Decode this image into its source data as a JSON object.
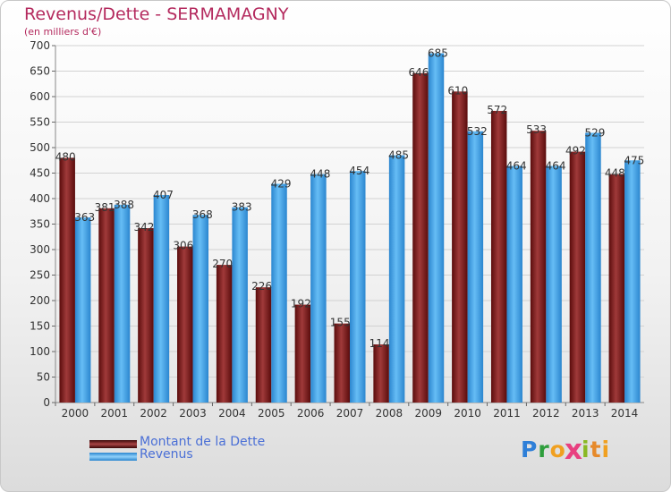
{
  "header": {
    "title": "Revenus/Dette - SERMAMAGNY",
    "subtitle": "(en milliers d'€)"
  },
  "logo": {
    "text": "Proxiti",
    "letters": [
      "P",
      "r",
      "o",
      "x",
      "i",
      "t",
      "i"
    ],
    "letter_colors": [
      "#2e7fd8",
      "#2e9e3c",
      "#f0a020",
      "#e84080",
      "#8ab823",
      "#e6892a",
      "#f0a020"
    ]
  },
  "chart_data": {
    "type": "bar",
    "title": "Revenus/Dette - SERMAMAGNY",
    "subtitle": "(en milliers d'€)",
    "categories": [
      "2000",
      "2001",
      "2002",
      "2003",
      "2004",
      "2005",
      "2006",
      "2007",
      "2008",
      "2009",
      "2010",
      "2011",
      "2012",
      "2013",
      "2014"
    ],
    "series": [
      {
        "name": "Montant de la Dette",
        "values": [
          480,
          381,
          342,
          306,
          270,
          226,
          192,
          155,
          114,
          646,
          610,
          572,
          533,
          492,
          448
        ],
        "color": "#7d1d1d"
      },
      {
        "name": "Revenus",
        "values": [
          363,
          388,
          407,
          368,
          383,
          429,
          448,
          454,
          485,
          685,
          532,
          464,
          464,
          529,
          475
        ],
        "color": "#3f9fe6"
      }
    ],
    "ylim": [
      0,
      700
    ],
    "yticks": [
      0,
      50,
      100,
      150,
      200,
      250,
      300,
      350,
      400,
      450,
      500,
      550,
      600,
      650,
      700
    ],
    "grid": true,
    "legend": "bottom-left"
  }
}
